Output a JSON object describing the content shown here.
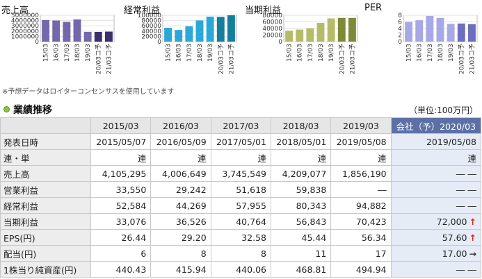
{
  "chart_data": [
    {
      "type": "bar",
      "title": "売上高",
      "categories": [
        "15/03",
        "16/03",
        "17/03",
        "18/03",
        "19/03",
        "20/03コ予",
        "21/03コ予"
      ],
      "values": [
        4105295,
        4006649,
        3745549,
        4209077,
        1856190,
        1850000,
        1900000
      ],
      "ylim": [
        0,
        5000000
      ],
      "yticks": [
        "5000000",
        "4000000",
        "3000000",
        "2000000",
        "1000000",
        "0"
      ],
      "colors": [
        "#7468aa",
        "#7468aa",
        "#7468aa",
        "#7468aa",
        "#7468aa",
        "#3b2f6e",
        "#3b2f6e"
      ]
    },
    {
      "type": "bar",
      "title": "経常利益",
      "categories": [
        "15/03",
        "16/03",
        "17/03",
        "18/03",
        "19/03",
        "20/03コ予",
        "21/03コ予"
      ],
      "values": [
        52584,
        44269,
        57955,
        80343,
        94882,
        94000,
        100000
      ],
      "ylim": [
        0,
        100000
      ],
      "yticks": [
        "100000",
        "80000",
        "60000",
        "40000",
        "20000",
        "0"
      ],
      "colors": [
        "#2aa8d8",
        "#2aa8d8",
        "#2aa8d8",
        "#2aa8d8",
        "#2aa8d8",
        "#137f9c",
        "#137f9c"
      ]
    },
    {
      "type": "bar",
      "title": "当期利益",
      "categories": [
        "15/03",
        "16/03",
        "17/03",
        "18/03",
        "19/03",
        "20/03コ予",
        "21/03コ予"
      ],
      "values": [
        33076,
        36526,
        40764,
        56843,
        70423,
        72000,
        72000
      ],
      "ylim": [
        0,
        80000
      ],
      "yticks": [
        "80000",
        "60000",
        "40000",
        "20000",
        "0"
      ],
      "colors": [
        "#b6bb6a",
        "#b6bb6a",
        "#b6bb6a",
        "#b6bb6a",
        "#b6bb6a",
        "#7f8a37",
        "#7f8a37"
      ]
    },
    {
      "type": "bar",
      "title": "PER",
      "categories": [
        "15/03",
        "16/03",
        "17/03",
        "18/03",
        "19/03",
        "20/03コ予",
        "21/03コ予"
      ],
      "values": [
        6.0,
        6.5,
        7.8,
        7.2,
        5.4,
        5.5,
        5.3
      ],
      "ylim": [
        0,
        8
      ],
      "yticks": [
        "8",
        "6",
        "4",
        "2",
        "0"
      ],
      "colors": [
        "#a8a8e6",
        "#a8a8e6",
        "#a8a8e6",
        "#a8a8e6",
        "#a8a8e6",
        "#6e6ec0",
        "#6e6ec0"
      ]
    }
  ],
  "footnote": "※予想データはロイターコンセンサスを使用しています",
  "section": {
    "title": "業績推移",
    "unit": "（単位:100万円）"
  },
  "table": {
    "headers": [
      "",
      "2015/03",
      "2016/03",
      "2017/03",
      "2018/03",
      "2019/03",
      "会社（予）2020/03"
    ],
    "rows": [
      {
        "label": "発表日時",
        "cells": [
          "2015/05/07",
          "2016/05/09",
          "2017/05/01",
          "2018/05/01",
          "2019/05/08",
          "2019/05/08"
        ],
        "arrow": ""
      },
      {
        "label": "連・単",
        "cells": [
          "連",
          "連",
          "連",
          "連",
          "連",
          "連"
        ],
        "arrow": ""
      },
      {
        "label": "売上高",
        "cells": [
          "4,105,295",
          "4,006,649",
          "3,745,549",
          "4,209,077",
          "1,856,190",
          "― ―"
        ],
        "arrow": ""
      },
      {
        "label": "営業利益",
        "cells": [
          "33,550",
          "29,242",
          "51,618",
          "59,838",
          "―",
          "― ―"
        ],
        "arrow": ""
      },
      {
        "label": "経常利益",
        "cells": [
          "52,584",
          "44,269",
          "57,955",
          "80,343",
          "94,882",
          "― ―"
        ],
        "arrow": ""
      },
      {
        "label": "当期利益",
        "cells": [
          "33,076",
          "36,526",
          "40,764",
          "56,843",
          "70,423",
          "72,000"
        ],
        "arrow": "↑"
      },
      {
        "label": "EPS(円)",
        "cells": [
          "26.44",
          "29.20",
          "32.58",
          "45.44",
          "56.34",
          "57.60"
        ],
        "arrow": "↑"
      },
      {
        "label": "配当(円)",
        "cells": [
          "6",
          "8",
          "8",
          "11",
          "17",
          "17.00"
        ],
        "arrow": "→"
      },
      {
        "label": "1株当り純資産(円)",
        "cells": [
          "440.43",
          "415.94",
          "440.06",
          "468.81",
          "494.94",
          "― ―"
        ],
        "arrow": ""
      }
    ]
  }
}
